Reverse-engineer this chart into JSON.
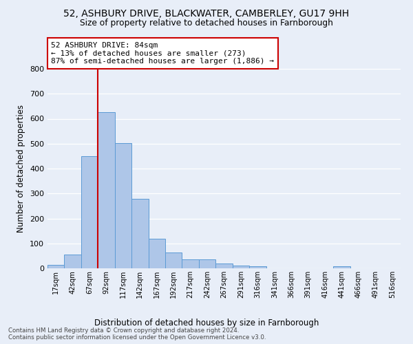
{
  "title_line1": "52, ASHBURY DRIVE, BLACKWATER, CAMBERLEY, GU17 9HH",
  "title_line2": "Size of property relative to detached houses in Farnborough",
  "xlabel": "Distribution of detached houses by size in Farnborough",
  "ylabel": "Number of detached properties",
  "footer_line1": "Contains HM Land Registry data © Crown copyright and database right 2024.",
  "footer_line2": "Contains public sector information licensed under the Open Government Licence v3.0.",
  "bar_labels": [
    "17sqm",
    "42sqm",
    "67sqm",
    "92sqm",
    "117sqm",
    "142sqm",
    "167sqm",
    "192sqm",
    "217sqm",
    "242sqm",
    "267sqm",
    "291sqm",
    "316sqm",
    "341sqm",
    "366sqm",
    "391sqm",
    "416sqm",
    "441sqm",
    "466sqm",
    "491sqm",
    "516sqm"
  ],
  "bar_values": [
    13,
    55,
    450,
    625,
    503,
    280,
    118,
    63,
    35,
    35,
    20,
    10,
    9,
    0,
    0,
    0,
    0,
    8,
    0,
    0,
    0
  ],
  "bar_color": "#aec6e8",
  "bar_edge_color": "#5b9bd5",
  "vline_color": "#cc0000",
  "annotation_text_line1": "52 ASHBURY DRIVE: 84sqm",
  "annotation_text_line2": "← 13% of detached houses are smaller (273)",
  "annotation_text_line3": "87% of semi-detached houses are larger (1,886) →",
  "annotation_box_color": "#cc0000",
  "ylim": [
    0,
    800
  ],
  "background_color": "#e8eef8",
  "plot_bg_color": "#e8eef8",
  "grid_color": "#ffffff",
  "yticks": [
    0,
    100,
    200,
    300,
    400,
    500,
    600,
    700,
    800
  ]
}
